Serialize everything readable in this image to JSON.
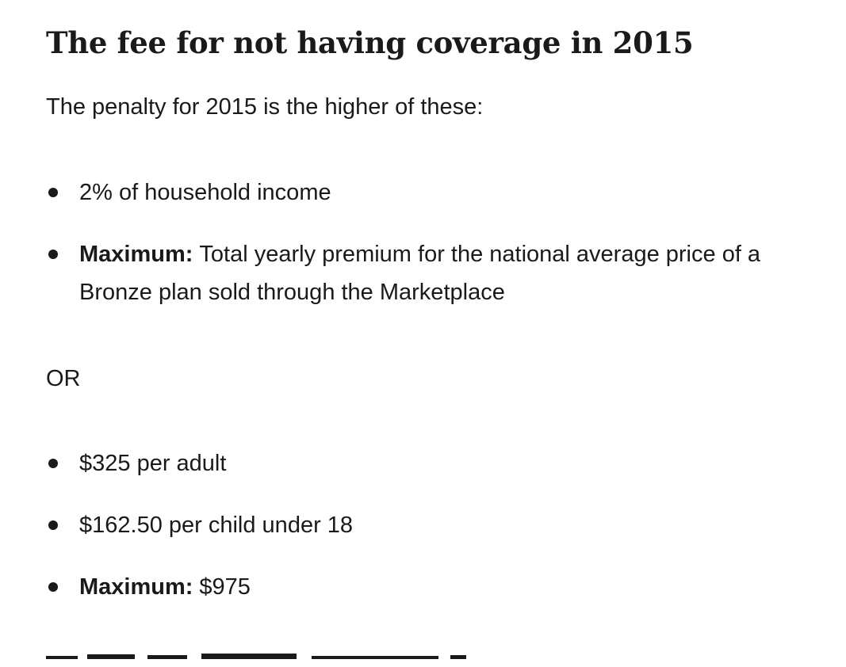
{
  "heading": "The fee for not having coverage in 2015",
  "intro": "The penalty for 2015 is the higher of these:",
  "list_1": [
    {
      "text": "2% of household income"
    },
    {
      "label": "Maximum:",
      "text": "Total yearly premium for the national average price of a Bronze plan sold through the Marketplace"
    }
  ],
  "separator": "OR",
  "list_2": [
    {
      "text": "$325 per adult"
    },
    {
      "text": "$162.50 per child under 18"
    },
    {
      "label": "Maximum:",
      "text": "$975"
    }
  ]
}
